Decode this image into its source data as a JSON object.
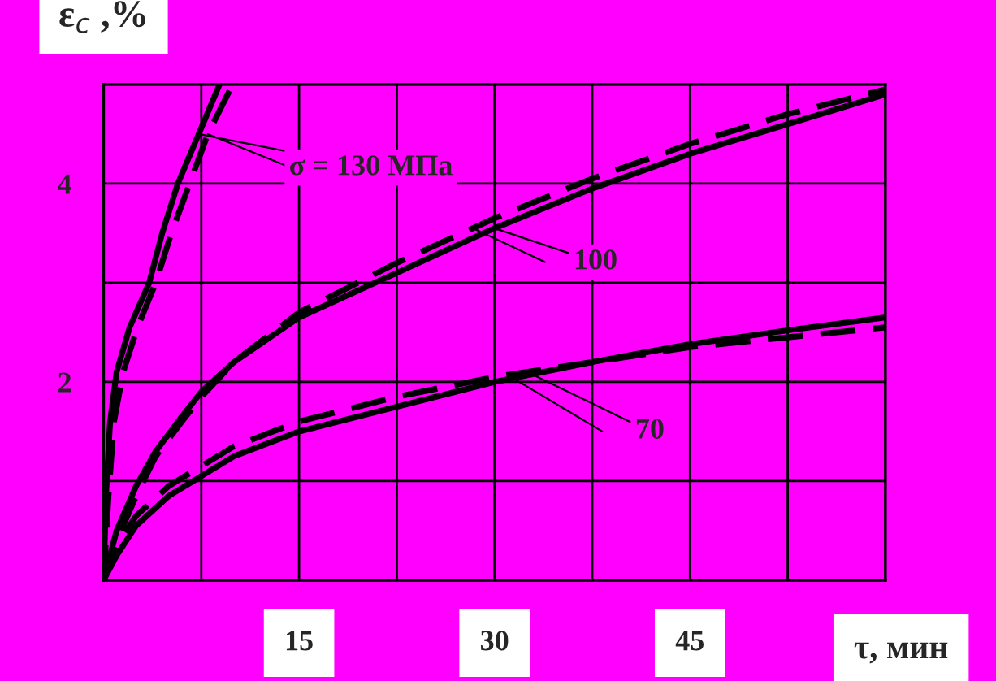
{
  "chart_data": {
    "type": "line",
    "xlabel": "τ, мин",
    "ylabel": "ε$_{c}$ ,%",
    "xlim": [
      0,
      60
    ],
    "ylim": [
      0,
      5
    ],
    "xticks": [
      {
        "value": 7.5,
        "label": null
      },
      15,
      {
        "value": 22.5,
        "label": null
      },
      30,
      {
        "value": 37.5,
        "label": null
      },
      45,
      {
        "value": 52.5,
        "label": null
      },
      {
        "value": 60,
        "label": null
      }
    ],
    "yticks": [
      {
        "value": 1,
        "label": null
      },
      2,
      {
        "value": 3,
        "label": null
      },
      4,
      {
        "value": 5,
        "label": null
      }
    ],
    "grid": true,
    "legend": false,
    "series": [
      {
        "color": "#000000",
        "line_style": "solid",
        "x": [
          0,
          0.2,
          0.5,
          1,
          2,
          3.5,
          4.5,
          5.7,
          7.3,
          8.9
        ],
        "values": [
          0,
          0.9,
          1.6,
          2.1,
          2.55,
          3.0,
          3.5,
          4.0,
          4.5,
          5.0
        ]
      },
      {
        "color": "#000000",
        "line_style": "dashed",
        "x": [
          0,
          0.4,
          0.8,
          1.5,
          2.6,
          4,
          5.2,
          6.6,
          8.0,
          9.9
        ],
        "values": [
          0,
          0.9,
          1.6,
          2.1,
          2.55,
          3.0,
          3.5,
          4.0,
          4.5,
          5.0
        ]
      },
      {
        "color": "#000000",
        "line_style": "solid",
        "x": [
          0,
          1,
          2.5,
          4,
          6,
          7.5,
          10,
          15,
          22.5,
          30,
          37.5,
          45,
          52.5,
          60
        ],
        "values": [
          0,
          0.5,
          0.95,
          1.3,
          1.65,
          1.9,
          2.2,
          2.65,
          3.1,
          3.55,
          3.95,
          4.3,
          4.6,
          4.9
        ]
      },
      {
        "color": "#000000",
        "line_style": "dashed",
        "x": [
          0,
          1,
          2.5,
          4,
          6,
          7.5,
          10,
          15,
          22.5,
          30,
          37.5,
          45,
          52.5,
          60
        ],
        "values": [
          0,
          0.4,
          0.85,
          1.25,
          1.6,
          1.85,
          2.2,
          2.7,
          3.2,
          3.65,
          4.05,
          4.4,
          4.7,
          4.95
        ]
      },
      {
        "color": "#000000",
        "line_style": "solid",
        "x": [
          0,
          1,
          2.5,
          5,
          7.5,
          10,
          15,
          22.5,
          30,
          37.5,
          45,
          52.5,
          60
        ],
        "values": [
          0,
          0.25,
          0.55,
          0.85,
          1.05,
          1.25,
          1.5,
          1.75,
          2.0,
          2.2,
          2.38,
          2.52,
          2.65
        ]
      },
      {
        "color": "#000000",
        "line_style": "dashed",
        "x": [
          0,
          1,
          2.5,
          5,
          7.5,
          10,
          15,
          22.5,
          30,
          37.5,
          45,
          52.5,
          60
        ],
        "values": [
          0,
          0.35,
          0.65,
          0.95,
          1.15,
          1.35,
          1.6,
          1.85,
          2.05,
          2.2,
          2.35,
          2.45,
          2.55
        ]
      }
    ],
    "annotations": [
      {
        "text": "σ = 130 МПа",
        "x": 7.3,
        "y": 4.5
      },
      {
        "text": "100",
        "x": 30,
        "y": 3.55
      },
      {
        "text": "70",
        "x": 33,
        "y": 2.07
      }
    ]
  }
}
